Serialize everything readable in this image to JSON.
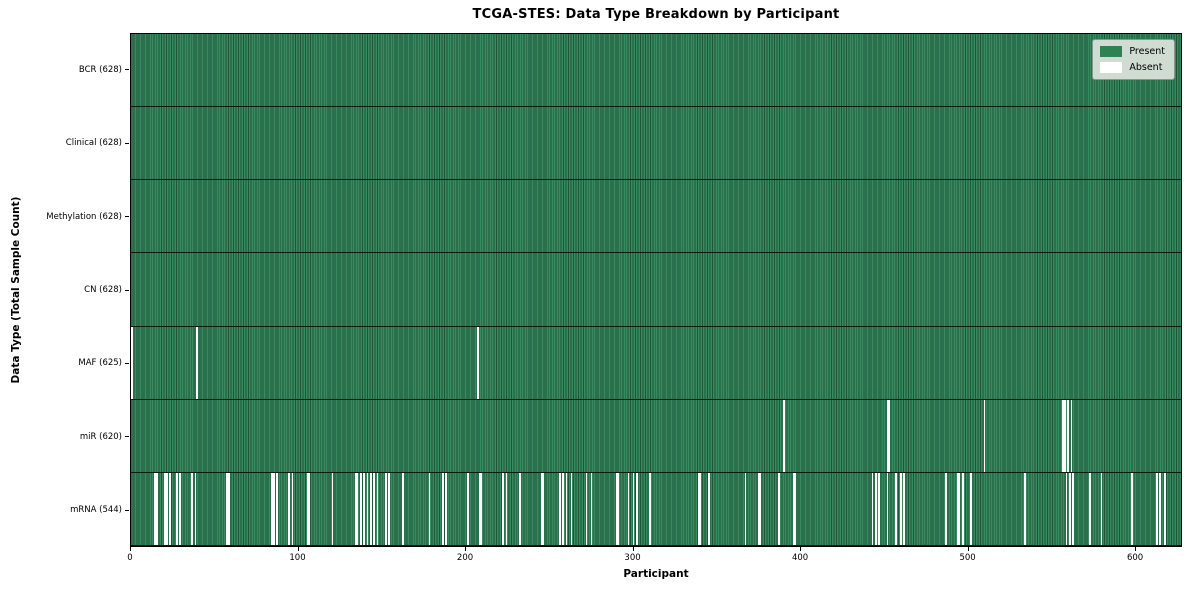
{
  "chart_data": {
    "type": "heatmap",
    "title": "TCGA-STES: Data Type Breakdown by Participant",
    "xlabel": "Participant",
    "ylabel": "Data Type (Total Sample Count)",
    "n_participants": 628,
    "x_ticks": [
      0,
      100,
      200,
      300,
      400,
      500,
      600
    ],
    "xlim": [
      0,
      628
    ],
    "grid": false,
    "legend_position": "upper right",
    "colors": {
      "present": "#2e8151",
      "present_light": "#3a8a60",
      "present_dark_edge": "#1c5737",
      "absent": "#ffffff",
      "row_separator": "#0d1a12",
      "legend_bg": "#dee4dd"
    },
    "legend": [
      {
        "label": "Present",
        "color": "#2e8151"
      },
      {
        "label": "Absent",
        "color": "#ffffff"
      }
    ],
    "rows": [
      {
        "label": "BCR (628)",
        "data_type": "BCR",
        "present_count": 628,
        "absent_participants": []
      },
      {
        "label": "Clinical (628)",
        "data_type": "Clinical",
        "present_count": 628,
        "absent_participants": []
      },
      {
        "label": "Methylation (628)",
        "data_type": "Methylation",
        "present_count": 628,
        "absent_participants": []
      },
      {
        "label": "CN (628)",
        "data_type": "CN",
        "present_count": 628,
        "absent_participants": []
      },
      {
        "label": "MAF (625)",
        "data_type": "MAF",
        "present_count": 625,
        "absent_participants": [
          0,
          39,
          207
        ]
      },
      {
        "label": "miR (620)",
        "data_type": "miR",
        "present_count": 620,
        "absent_participants": [
          390,
          452,
          453,
          510,
          557,
          558,
          560,
          562
        ]
      },
      {
        "label": "mRNA (544)",
        "data_type": "mRNA",
        "present_count": 544,
        "absent_participants": [
          14,
          15,
          20,
          21,
          23,
          27,
          29,
          36,
          38,
          57,
          58,
          84,
          85,
          87,
          94,
          96,
          105,
          106,
          120,
          134,
          135,
          137,
          139,
          141,
          143,
          145,
          147,
          152,
          154,
          162,
          178,
          186,
          188,
          201,
          208,
          209,
          222,
          224,
          232,
          245,
          246,
          256,
          258,
          260,
          263,
          272,
          275,
          290,
          291,
          297,
          300,
          302,
          310,
          339,
          340,
          345,
          367,
          375,
          376,
          387,
          396,
          397,
          443,
          445,
          447,
          452,
          457,
          460,
          462,
          487,
          494,
          495,
          497,
          502,
          534,
          559,
          561,
          563,
          573,
          580,
          598,
          613,
          615,
          618
        ]
      }
    ]
  }
}
